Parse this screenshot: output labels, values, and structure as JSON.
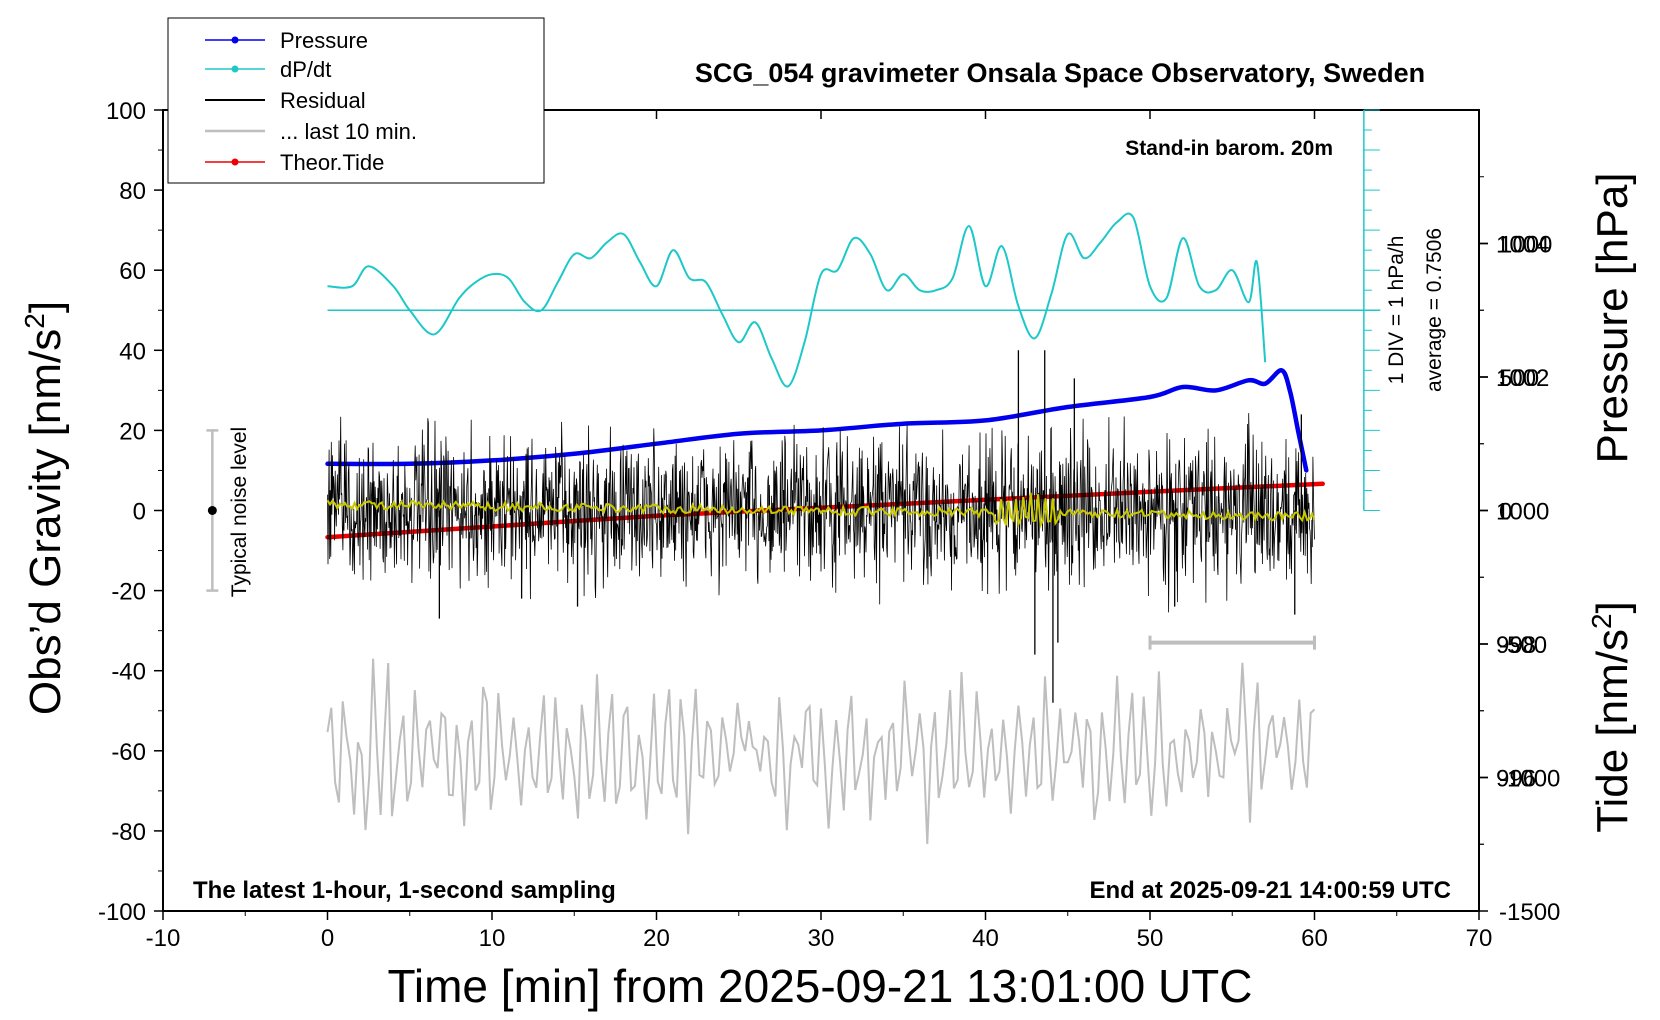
{
  "chart_data": {
    "type": "line",
    "title": "SCG_054 gravimeter Onsala Space Observatory, Sweden",
    "xlabel": "Time [min] from 2025-09-21 13:01:00 UTC",
    "ylabel_left_main": "Obs’d Gravity [nm/s",
    "ylabel_left_sup": "2",
    "ylabel_left_end": "]",
    "ylabel_right_pressure": "Pressure [hPa]",
    "ylabel_right_tide_main": "Tide [nm/s",
    "ylabel_right_tide_sup": "2",
    "ylabel_right_tide_end": "]",
    "xlim": [
      -10,
      70
    ],
    "ylim": [
      -100,
      100
    ],
    "pressure_ylim": [
      994,
      1006
    ],
    "tide_ylim": [
      -1500,
      1500
    ],
    "x_ticks": [
      "-10",
      "0",
      "10",
      "20",
      "30",
      "40",
      "50",
      "60",
      "70"
    ],
    "y_ticks": [
      "100",
      "80",
      "60",
      "40",
      "20",
      "0",
      "-20",
      "-40",
      "-60",
      "-80",
      "-100"
    ],
    "pressure_ticks": [
      "1004",
      "1002",
      "1000",
      "998",
      "996"
    ],
    "tide_ticks": [
      "1000",
      "500",
      "0",
      "-500",
      "-1000",
      "-1500"
    ],
    "grid": false,
    "legend_placement": "top-left",
    "annotations": {
      "stand_in": "Stand-in barom. 20m",
      "scale_div": "1 DIV = 1 hPa/h",
      "average": "average = 0.7506",
      "noise": "Typical noise level",
      "latest": "The latest 1-hour, 1-second sampling",
      "end_at": "End at 2025-09-21 14:00:59 UTC"
    },
    "colors": {
      "pressure": "#0000ee",
      "dpdt": "#1ec8c8",
      "residual": "#000000",
      "last10": "#bebebe",
      "tide": "#ee0000",
      "smoothed": "#c8c800"
    },
    "series": [
      {
        "name": "Pressure",
        "x": [
          0,
          5,
          10,
          15,
          20,
          25,
          30,
          35,
          40,
          45,
          50,
          52,
          54,
          56,
          57,
          58,
          58.5,
          59,
          59.5
        ],
        "y": [
          1000.7,
          1000.7,
          1000.75,
          1000.85,
          1001.0,
          1001.15,
          1001.2,
          1001.3,
          1001.35,
          1001.55,
          1001.7,
          1001.85,
          1001.8,
          1001.95,
          1001.9,
          1002.1,
          1001.8,
          1001.2,
          1000.6
        ]
      },
      {
        "name": "dP/dt",
        "x": [
          0,
          1.5,
          2.5,
          4,
          5,
          6.5,
          8,
          9,
          10,
          11,
          12,
          13,
          14,
          15,
          16,
          17,
          18,
          19,
          20,
          21,
          22,
          23,
          24,
          25,
          26,
          27,
          28,
          29,
          30,
          31,
          32,
          33,
          34,
          35,
          36,
          37,
          38,
          39,
          40,
          41,
          42,
          43,
          44,
          45,
          46,
          47,
          48,
          49,
          50,
          51,
          52,
          53,
          54,
          55,
          56,
          56.5,
          57
        ],
        "y": [
          56,
          56,
          61,
          56,
          50,
          44,
          53,
          57,
          59,
          58,
          52,
          50,
          57,
          64,
          63,
          67,
          69,
          62,
          56,
          65,
          58,
          57,
          49,
          42,
          47,
          38,
          31,
          42,
          59,
          60,
          68,
          64,
          55,
          59,
          55,
          55,
          58,
          71,
          56,
          66,
          51,
          43,
          54,
          69,
          63,
          67,
          72,
          73,
          56,
          53,
          68,
          56,
          55,
          60,
          52,
          62,
          37
        ]
      },
      {
        "name": "Theor.Tide",
        "x": [
          0,
          10,
          20,
          30,
          40,
          50,
          60.5
        ],
        "y": [
          -100,
          -60,
          -20,
          10,
          40,
          70,
          100
        ]
      },
      {
        "name": "Residual",
        "x_range": [
          0,
          60
        ],
        "amplitude_typical": 12,
        "spikes": [
          {
            "x": 6.8,
            "y": -27
          },
          {
            "x": 11.8,
            "y": -22
          },
          {
            "x": 15.2,
            "y": -24
          },
          {
            "x": 42,
            "y": 40
          },
          {
            "x": 43,
            "y": -36
          },
          {
            "x": 43.6,
            "y": 40
          },
          {
            "x": 44.1,
            "y": -48
          },
          {
            "x": 44.4,
            "y": -33
          },
          {
            "x": 45.4,
            "y": 33
          },
          {
            "x": 51.5,
            "y": -24
          },
          {
            "x": 59.2,
            "y": 24
          },
          {
            "x": 58.8,
            "y": -26
          }
        ]
      },
      {
        "name": "... last 10 min.",
        "x_range": [
          0,
          60
        ],
        "center": -60,
        "amplitude_typical": 12,
        "bar_x": [
          50,
          60
        ],
        "bar_y": -33
      }
    ],
    "noise_level": {
      "x": -7,
      "center": 0,
      "half_range": 20
    }
  }
}
